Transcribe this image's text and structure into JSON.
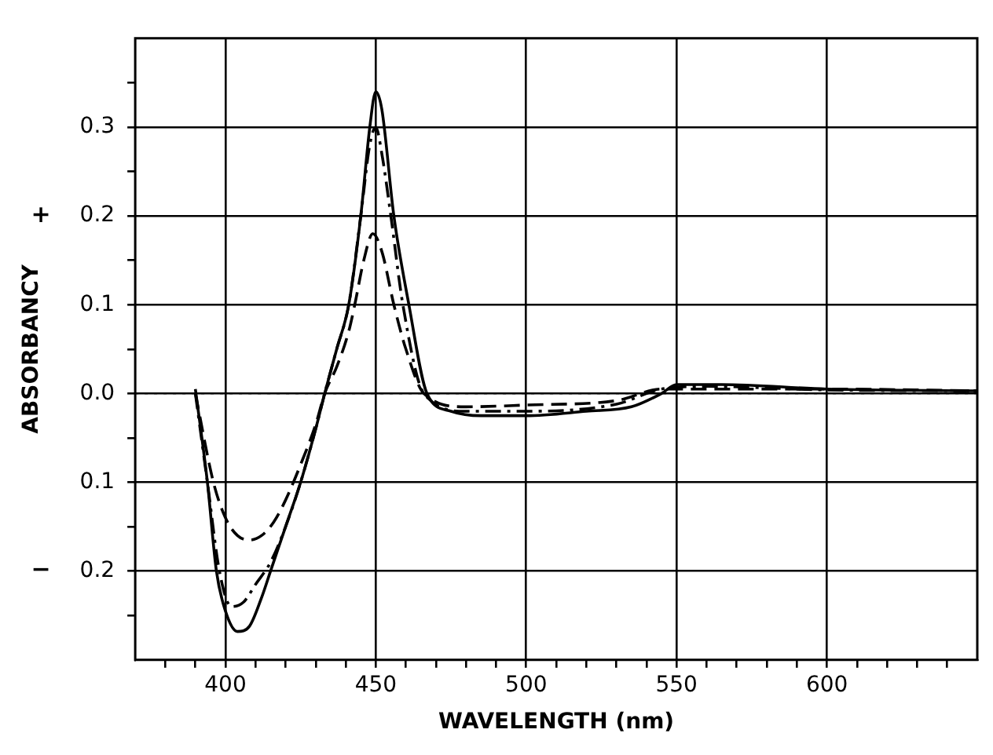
{
  "chart_data": {
    "type": "line",
    "xlabel": "WAVELENGTH (nm)",
    "ylabel": "ABSORBANCY",
    "annotations": [
      "+",
      "−"
    ],
    "xlim": [
      370,
      650
    ],
    "ylim": [
      -0.3,
      0.4
    ],
    "xticks": [
      {
        "value": 380,
        "label": null
      },
      {
        "value": 390,
        "label": null
      },
      400,
      {
        "value": 410,
        "label": null
      },
      {
        "value": 420,
        "label": null
      },
      {
        "value": 430,
        "label": null
      },
      {
        "value": 440,
        "label": null
      },
      450,
      {
        "value": 460,
        "label": null
      },
      {
        "value": 470,
        "label": null
      },
      {
        "value": 480,
        "label": null
      },
      {
        "value": 490,
        "label": null
      },
      500,
      {
        "value": 510,
        "label": null
      },
      {
        "value": 520,
        "label": null
      },
      {
        "value": 530,
        "label": null
      },
      {
        "value": 540,
        "label": null
      },
      550,
      {
        "value": 560,
        "label": null
      },
      {
        "value": 570,
        "label": null
      },
      {
        "value": 580,
        "label": null
      },
      {
        "value": 590,
        "label": null
      },
      600,
      {
        "value": 610,
        "label": null
      },
      {
        "value": 620,
        "label": null
      },
      {
        "value": 630,
        "label": null
      },
      {
        "value": 640,
        "label": null
      }
    ],
    "yticks": [
      {
        "value": -0.25,
        "label": null
      },
      {
        "value": -0.2,
        "label": "0.2"
      },
      {
        "value": -0.15,
        "label": null
      },
      {
        "value": -0.1,
        "label": "0.1"
      },
      {
        "value": -0.05,
        "label": null
      },
      {
        "value": 0,
        "label": "0.0"
      },
      {
        "value": 0.05,
        "label": null
      },
      {
        "value": 0.1,
        "label": "0.1"
      },
      {
        "value": 0.15,
        "label": null
      },
      {
        "value": 0.2,
        "label": "0.2"
      },
      {
        "value": 0.25,
        "label": null
      },
      {
        "value": 0.3,
        "label": "0.3"
      },
      {
        "value": 0.35,
        "label": null
      }
    ],
    "grid": true,
    "legend": false,
    "marker": "none",
    "ref_lines": [
      {
        "axis": "y",
        "value": 0,
        "line_style": "dotted",
        "color": "#000000"
      }
    ],
    "series": [
      {
        "color": "#000000",
        "line_style": "solid",
        "x": [
          390,
          394,
          397,
          400,
          404,
          408,
          412,
          415,
          420,
          425,
          430,
          433,
          437,
          441,
          445,
          448,
          450,
          452,
          456,
          461,
          467,
          475,
          485,
          500,
          520,
          535,
          545,
          550,
          565,
          600,
          650
        ],
        "values": [
          0.005,
          -0.1,
          -0.2,
          -0.245,
          -0.268,
          -0.262,
          -0.23,
          -0.2,
          -0.15,
          -0.1,
          -0.04,
          0,
          0.05,
          0.1,
          0.2,
          0.3,
          0.34,
          0.32,
          0.2,
          0.1,
          0.0,
          -0.02,
          -0.025,
          -0.025,
          -0.02,
          -0.015,
          0.0,
          0.01,
          0.01,
          0.005,
          0.003
        ]
      },
      {
        "color": "#000000",
        "line_style": "dashdot",
        "x": [
          390,
          394,
          398,
          402,
          406,
          410,
          415,
          420,
          425,
          430,
          433,
          437,
          441,
          445,
          448,
          450,
          452,
          455,
          459,
          466,
          480,
          500,
          530,
          545,
          560,
          600,
          650
        ],
        "values": [
          0.0,
          -0.1,
          -0.2,
          -0.24,
          -0.235,
          -0.215,
          -0.19,
          -0.15,
          -0.1,
          -0.04,
          0,
          0.05,
          0.1,
          0.2,
          0.28,
          0.3,
          0.27,
          0.2,
          0.1,
          0.0,
          -0.02,
          -0.02,
          -0.012,
          0.005,
          0.008,
          0.004,
          0.003
        ]
      },
      {
        "color": "#000000",
        "line_style": "dashed",
        "x": [
          390,
          396,
          400,
          404,
          408,
          412,
          416,
          420,
          425,
          430,
          433,
          437,
          441,
          443,
          446,
          449,
          452,
          456,
          460,
          466,
          480,
          500,
          530,
          545,
          600,
          650
        ],
        "values": [
          0.0,
          -0.1,
          -0.14,
          -0.16,
          -0.165,
          -0.16,
          -0.145,
          -0.12,
          -0.08,
          -0.035,
          0,
          0.03,
          0.07,
          0.1,
          0.15,
          0.18,
          0.16,
          0.1,
          0.05,
          0.0,
          -0.015,
          -0.013,
          -0.008,
          0.005,
          0.005,
          0.003
        ]
      }
    ]
  }
}
